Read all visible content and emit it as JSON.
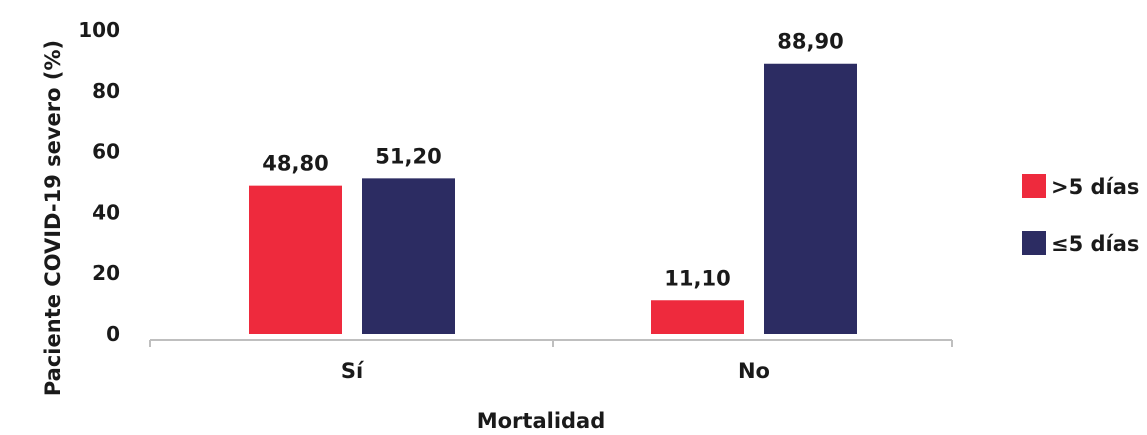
{
  "chart_data": {
    "type": "bar",
    "categories": [
      "Sí",
      "No"
    ],
    "series": [
      {
        "name": ">5 días",
        "values": [
          48.8,
          11.1
        ],
        "labels": [
          "48,80",
          "11,10"
        ],
        "color": "#ee2a3d"
      },
      {
        "name": "≤5 días",
        "values": [
          51.2,
          88.9
        ],
        "labels": [
          "51,20",
          "88,90"
        ],
        "color": "#2c2c62"
      }
    ],
    "xlabel": "Mortalidad",
    "ylabel": "Paciente COVID-19 severo (%)",
    "ylim": [
      0,
      100
    ],
    "yticks": [
      0,
      20,
      40,
      60,
      80,
      100
    ],
    "grid": false,
    "legend": "right"
  }
}
